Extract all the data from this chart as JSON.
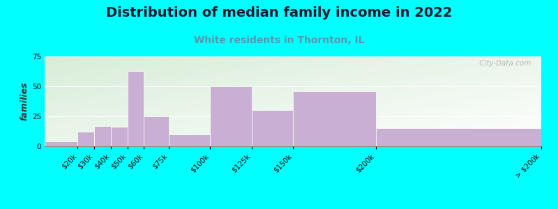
{
  "title": "Distribution of median family income in 2022",
  "subtitle": "White residents in Thornton, IL",
  "ylabel": "families",
  "bar_color": "#c9afd4",
  "bar_edgecolor": "#ffffff",
  "background_color": "#00ffff",
  "title_fontsize": 14,
  "subtitle_fontsize": 10,
  "subtitle_color": "#5599aa",
  "ylabel_fontsize": 9,
  "tick_fontsize": 7.5,
  "ylim": [
    0,
    75
  ],
  "yticks": [
    0,
    25,
    50,
    75
  ],
  "watermark": " City-Data.com",
  "income_bins": [
    0,
    20,
    30,
    40,
    50,
    60,
    75,
    100,
    125,
    150,
    200,
    300
  ],
  "values": [
    4,
    12,
    17,
    16,
    63,
    25,
    10,
    50,
    30,
    46,
    15
  ],
  "tick_labels": [
    "$20k",
    "$30k",
    "$40k",
    "$50k",
    "$60k",
    "$75k",
    "$100k",
    "$125k",
    "$150k",
    "$200k",
    "> $200k"
  ]
}
